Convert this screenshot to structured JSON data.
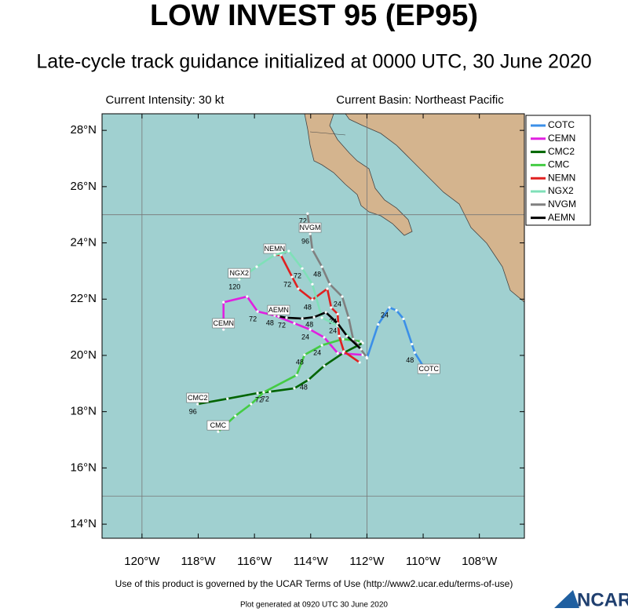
{
  "header": {
    "title": "LOW INVEST 95 (EP95)",
    "subtitle": "Late-cycle track guidance initialized at 0000 UTC, 30 June 2020"
  },
  "info": {
    "intensity": "Current Intensity: 30 kt",
    "basin": "Current Basin: Northeast Pacific"
  },
  "map": {
    "lon_range": [
      -121.42,
      -106.4
    ],
    "lat_range": [
      13.5,
      28.59
    ],
    "lon_ticks": [
      {
        "value": -120,
        "label": "120°W"
      },
      {
        "value": -118,
        "label": "118°W"
      },
      {
        "value": -116,
        "label": "116°W"
      },
      {
        "value": -114,
        "label": "114°W"
      },
      {
        "value": -112,
        "label": "112°W"
      },
      {
        "value": -110,
        "label": "110°W"
      },
      {
        "value": -108,
        "label": "108°W"
      }
    ],
    "lat_ticks": [
      {
        "value": 14,
        "label": "14°N"
      },
      {
        "value": 16,
        "label": "16°N"
      },
      {
        "value": 18,
        "label": "18°N"
      },
      {
        "value": 20,
        "label": "20°N"
      },
      {
        "value": 22,
        "label": "22°N"
      },
      {
        "value": 24,
        "label": "24°N"
      },
      {
        "value": 26,
        "label": "26°N"
      },
      {
        "value": 28,
        "label": "28°N"
      }
    ],
    "grid_lon": [
      -120,
      -112
    ],
    "grid_lat": [
      25,
      15
    ]
  },
  "tracks": [
    {
      "name": "COTC",
      "color": "#3b8fe8",
      "lon": [
        -112.0,
        -111.6,
        -111.2,
        -110.95,
        -110.7,
        -110.4,
        -110.3,
        -109.8
      ],
      "lat": [
        19.9,
        21.1,
        21.7,
        21.6,
        21.3,
        20.4,
        20.1,
        19.3
      ],
      "labels": [
        null,
        null,
        "24",
        null,
        null,
        null,
        "48",
        null
      ]
    },
    {
      "name": "CEMN",
      "color": "#e020e0",
      "lon": [
        -112.15,
        -113.04,
        -113.52,
        -114.02,
        -114.58,
        -115.28,
        -115.89,
        -116.26,
        -117.1,
        -117.1
      ],
      "lat": [
        20.02,
        20.08,
        20.64,
        20.92,
        21.14,
        21.42,
        21.56,
        22.09,
        21.89,
        20.92
      ],
      "labels": [
        null,
        null,
        null,
        "24",
        null,
        "48",
        "72",
        null,
        null,
        null
      ]
    },
    {
      "name": "CMC2",
      "color": "#006400",
      "lon": [
        -112.15,
        -112.85,
        -113.52,
        -114.08,
        -114.58,
        -115.45,
        -115.89,
        -116.96,
        -118.02
      ],
      "lat": [
        20.44,
        20.08,
        19.63,
        19.13,
        18.83,
        18.71,
        18.66,
        18.46,
        18.27
      ],
      "labels": [
        null,
        null,
        null,
        "48",
        null,
        "72",
        null,
        null,
        "96"
      ]
    },
    {
      "name": "CMC",
      "color": "#44cc44",
      "lon": [
        -112.21,
        -112.85,
        -113.6,
        -114.22,
        -114.5,
        -115.67,
        -116.12,
        -116.68,
        -117.29
      ],
      "lat": [
        20.5,
        20.58,
        20.36,
        20.02,
        19.3,
        18.69,
        18.27,
        17.85,
        17.29
      ],
      "labels": [
        null,
        null,
        "24",
        "48",
        null,
        "72",
        null,
        null,
        null
      ]
    },
    {
      "name": "NEMN",
      "color": "#e02020",
      "lon": [
        -112.26,
        -112.82,
        -112.99,
        -113.04,
        -113.27,
        -113.41,
        -113.94,
        -114.44,
        -114.66,
        -115.06,
        -115.28
      ],
      "lat": [
        19.75,
        20.14,
        20.69,
        21.47,
        21.7,
        22.37,
        21.98,
        22.37,
        22.79,
        23.57,
        23.57
      ],
      "labels": [
        null,
        null,
        null,
        "24",
        null,
        null,
        "48",
        null,
        "72",
        null,
        null
      ]
    },
    {
      "name": "NGX2",
      "color": "#7fe0b8",
      "lon": [
        -112.35,
        -113.04,
        -113.6,
        -113.94,
        -114.3,
        -114.78,
        -115.28,
        -115.92,
        -116.54
      ],
      "lat": [
        20.44,
        21.06,
        21.34,
        22.53,
        23.09,
        23.71,
        23.57,
        23.15,
        22.7
      ],
      "labels": [
        null,
        null,
        null,
        null,
        "72",
        null,
        null,
        null,
        "120"
      ]
    },
    {
      "name": "NVGM",
      "color": "#808080",
      "lon": [
        -112.01,
        -112.49,
        -112.65,
        -112.88,
        -113.32,
        -113.6,
        -113.94,
        -114.11,
        -114.02
      ],
      "lat": [
        19.94,
        20.58,
        21.34,
        22.09,
        22.53,
        23.15,
        23.76,
        25.04,
        24.32
      ],
      "labels": [
        null,
        null,
        null,
        "24",
        null,
        "48",
        null,
        "72",
        "96"
      ]
    },
    {
      "name": "AEMN",
      "color": "#000000",
      "lon": [
        -112.21,
        -112.71,
        -113.04,
        -113.46,
        -113.88,
        -114.3,
        -114.86,
        -115.14
      ],
      "lat": [
        20.22,
        20.69,
        21.14,
        21.53,
        21.36,
        21.31,
        21.34,
        21.39
      ],
      "labels": [
        null,
        null,
        "24",
        null,
        "48",
        null,
        "72",
        null
      ]
    }
  ],
  "footer": {
    "terms": "Use of this product is governed by the UCAR Terms of Use (http://www2.ucar.edu/terms-of-use)",
    "generated": "Plot generated at 0920 UTC   30 June 2020",
    "logo": "NCAR"
  }
}
